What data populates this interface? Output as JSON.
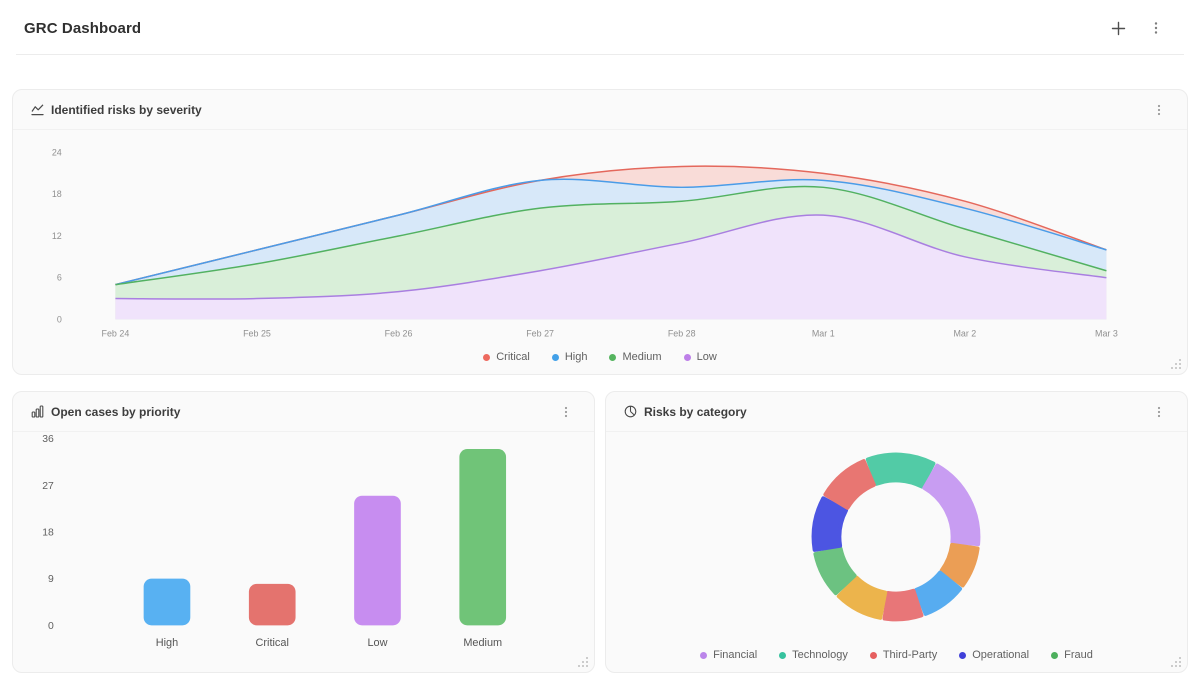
{
  "header": {
    "title": "GRC Dashboard"
  },
  "cards": {
    "severity": {
      "title": "Identified risks by severity"
    },
    "priority": {
      "title": "Open cases by priority"
    },
    "category": {
      "title": "Risks by category"
    }
  },
  "chart_data": [
    {
      "id": "severity",
      "type": "area",
      "title": "Identified risks by severity",
      "categories": [
        "Feb 24",
        "Feb 25",
        "Feb 26",
        "Feb 27",
        "Feb 28",
        "Mar 1",
        "Mar 2",
        "Mar 3"
      ],
      "series": [
        {
          "name": "Critical",
          "line": "#e4685c",
          "fill": "#f9dcd8",
          "values": [
            5,
            10,
            15,
            20,
            22,
            21,
            17,
            10
          ]
        },
        {
          "name": "High",
          "line": "#4a9ce8",
          "fill": "#d7e8f9",
          "values": [
            5,
            10,
            15,
            20,
            19,
            20,
            16,
            10
          ]
        },
        {
          "name": "Medium",
          "line": "#52b161",
          "fill": "#d9efd9",
          "values": [
            5,
            8,
            12,
            16,
            17,
            19,
            13,
            7
          ]
        },
        {
          "name": "Low",
          "line": "#a97fe0",
          "fill": "#f0e3fb",
          "values": [
            3,
            3,
            4,
            7,
            11,
            15,
            9,
            6
          ]
        }
      ],
      "yticks": [
        0,
        6,
        12,
        18,
        24
      ],
      "ylim": [
        0,
        26
      ],
      "grid": false,
      "legend_position": "bottom",
      "legend": [
        {
          "label": "Critical",
          "color": "#ed6a5f"
        },
        {
          "label": "High",
          "color": "#42a0e8"
        },
        {
          "label": "Medium",
          "color": "#55b45f"
        },
        {
          "label": "Low",
          "color": "#bd7fe8"
        }
      ]
    },
    {
      "id": "priority",
      "type": "bar",
      "title": "Open cases by priority",
      "categories": [
        "High",
        "Critical",
        "Low",
        "Medium"
      ],
      "values": [
        9,
        8,
        25,
        34
      ],
      "colors": [
        "#58b1f2",
        "#e4736e",
        "#c78df0",
        "#70c478"
      ],
      "yticks": [
        0,
        9,
        18,
        27,
        36
      ],
      "ylim": [
        0,
        36
      ],
      "grid": false
    },
    {
      "id": "category",
      "type": "donut",
      "title": "Risks by category",
      "segments": [
        {
          "start": -20,
          "end": 27,
          "color": "#52cba6"
        },
        {
          "start": 30,
          "end": 95,
          "color": "#c89df2"
        },
        {
          "start": 98,
          "end": 126,
          "color": "#eb9e55"
        },
        {
          "start": 129,
          "end": 159,
          "color": "#57acf0"
        },
        {
          "start": 162,
          "end": 188,
          "color": "#e87678"
        },
        {
          "start": 191,
          "end": 224,
          "color": "#ecb44c"
        },
        {
          "start": 227,
          "end": 258,
          "color": "#6cc281"
        },
        {
          "start": 261,
          "end": 298,
          "color": "#4c55e2"
        },
        {
          "start": 301,
          "end": 337,
          "color": "#e87672"
        }
      ],
      "legend_position": "bottom",
      "legend": [
        {
          "label": "Financial",
          "color": "#bb86ea"
        },
        {
          "label": "Technology",
          "color": "#36c29e"
        },
        {
          "label": "Third-Party",
          "color": "#e65f5f"
        },
        {
          "label": "Operational",
          "color": "#4040d9"
        },
        {
          "label": "Fraud",
          "color": "#4daf5d"
        }
      ]
    }
  ]
}
